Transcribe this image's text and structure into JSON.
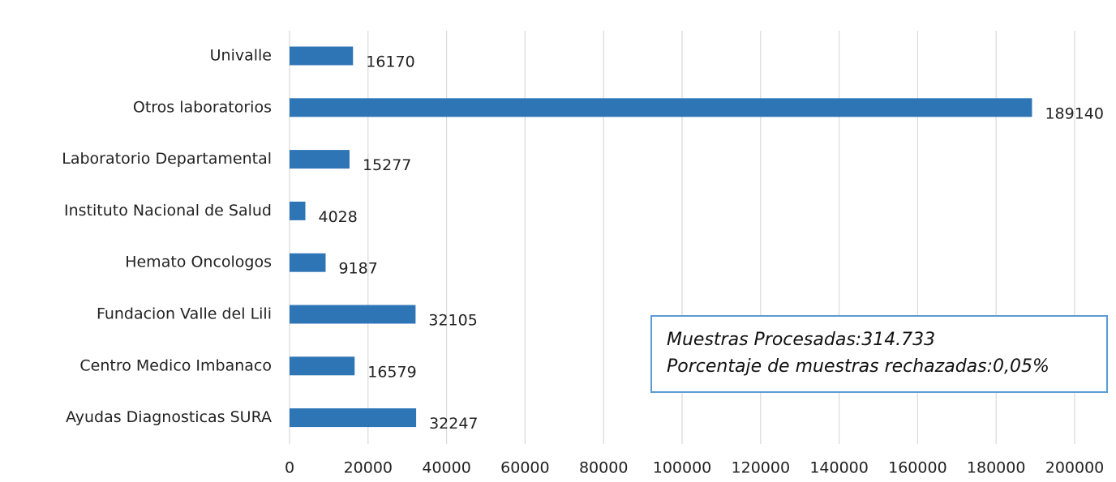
{
  "chart_data": {
    "type": "bar",
    "orientation": "horizontal",
    "categories": [
      "Univalle",
      "Otros laboratorios",
      "Laboratorio Departamental",
      "Instituto Nacional de Salud",
      "Hemato Oncologos",
      "Fundacion Valle del Lili",
      "Centro Medico Imbanaco",
      "Ayudas Diagnosticas SURA"
    ],
    "values": [
      16170,
      189140,
      15277,
      4028,
      9187,
      32105,
      16579,
      32247
    ],
    "color": "#2e75b6",
    "xlim": [
      0,
      200000
    ],
    "xticks": [
      0,
      20000,
      40000,
      60000,
      80000,
      100000,
      120000,
      140000,
      160000,
      180000,
      200000
    ],
    "grid": true,
    "annotations": [
      "Muestras Procesadas:314.733",
      "Porcentaje de muestras rechazadas:0,05%"
    ]
  }
}
